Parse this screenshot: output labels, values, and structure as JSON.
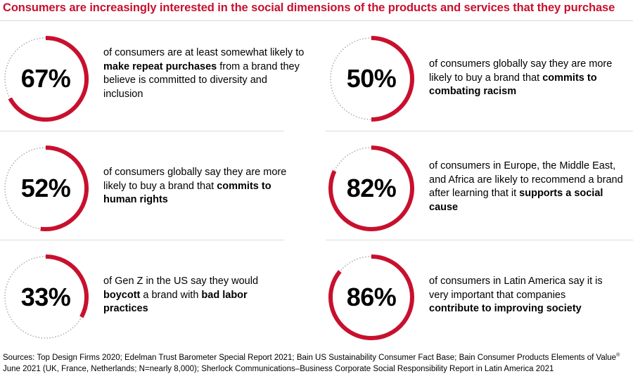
{
  "title": "Consumers are increasingly interested in the social dimensions of the products and services that they purchase",
  "colors": {
    "accent": "#c8102e",
    "track": "#b0b0b0"
  },
  "chart_data": {
    "type": "pie",
    "title": "Consumers are increasingly interested in the social dimensions of the products and services that they purchase",
    "items": [
      {
        "value": 67,
        "label": "67%",
        "text_pre": "of consumers are at least somewhat likely to ",
        "text_bold": "make repeat purchases",
        "text_post": " from a brand they believe is committed to diversity and inclusion"
      },
      {
        "value": 50,
        "label": "50%",
        "text_pre": "of consumers globally say they are more likely to buy a brand that ",
        "text_bold": "commits to combating racism",
        "text_post": ""
      },
      {
        "value": 52,
        "label": "52%",
        "text_pre": "of consumers globally say they are more likely to buy a brand that ",
        "text_bold": "commits to human rights",
        "text_post": ""
      },
      {
        "value": 82,
        "label": "82%",
        "text_pre": "of consumers in Europe, the Middle East, and Africa are likely to recommend a brand after learning that it ",
        "text_bold": "supports a social cause",
        "text_post": ""
      },
      {
        "value": 33,
        "label": "33%",
        "text_pre": "of Gen Z in the US say they would ",
        "text_bold": "boycott",
        "text_post": " a brand with ",
        "text_bold2": "bad labor practices"
      },
      {
        "value": 86,
        "label": "86%",
        "text_pre": "of consumers in Latin America say it is very important that companies ",
        "text_bold": "contribute to improving society",
        "text_post": ""
      }
    ]
  },
  "sources": {
    "text_a": "Sources: Top Design Firms 2020; Edelman Trust Barometer Special Report 2021; Bain US Sustainability Consumer Fact Base; Bain Consumer Products Elements of Value",
    "sup": "®",
    "text_b": " June 2021 (UK, France, Netherlands; N=nearly 8,000); Sherlock Communications–Business Corporate Social Responsibility Report in Latin America 2021"
  }
}
